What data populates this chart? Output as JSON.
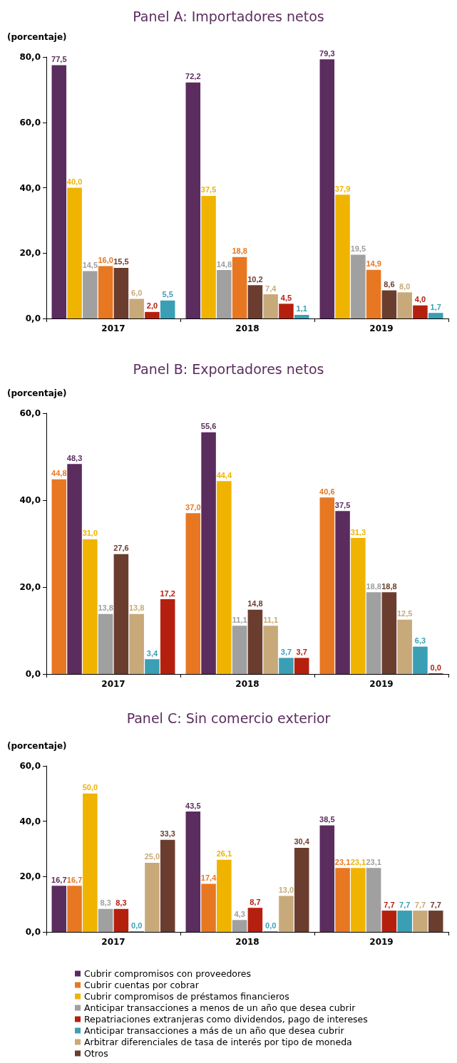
{
  "chart_data": [
    {
      "type": "bar",
      "title": "Panel A: Importadores netos",
      "ylabel": "(porcentaje)",
      "categories": [
        "2017",
        "2018",
        "2019"
      ],
      "ylim": [
        0,
        80
      ],
      "yticks": [
        {
          "value": 0,
          "label": "0,0"
        },
        {
          "value": 20,
          "label": "20,0"
        },
        {
          "value": 40,
          "label": "40,0"
        },
        {
          "value": 60,
          "label": "60,0"
        },
        {
          "value": 80,
          "label": "80,0"
        }
      ],
      "grid": false,
      "legend": false,
      "series": [
        {
          "color": "#5b2c5e",
          "values": [
            77.5,
            72.2,
            79.3
          ],
          "value_labels": [
            "77,5",
            "72,2",
            "79,3"
          ]
        },
        {
          "color": "#f0b400",
          "values": [
            40.0,
            37.5,
            37.9
          ],
          "value_labels": [
            "40,0",
            "37,5",
            "37,9"
          ]
        },
        {
          "color": "#a0a0a0",
          "values": [
            14.5,
            14.8,
            19.5
          ],
          "value_labels": [
            "14,5",
            "14,8",
            "19,5"
          ]
        },
        {
          "color": "#e87722",
          "values": [
            16.0,
            18.8,
            14.9
          ],
          "value_labels": [
            "16,0",
            "18,8",
            "14,9"
          ]
        },
        {
          "color": "#6b3d2e",
          "values": [
            15.5,
            10.2,
            8.6
          ],
          "value_labels": [
            "15,5",
            "10,2",
            "8,6"
          ]
        },
        {
          "color": "#c8a97a",
          "values": [
            6.0,
            7.4,
            8.0
          ],
          "value_labels": [
            "6,0",
            "7,4",
            "8,0"
          ]
        },
        {
          "color": "#b5200e",
          "values": [
            2.0,
            4.5,
            4.0
          ],
          "value_labels": [
            "2,0",
            "4,5",
            "4,0"
          ]
        },
        {
          "color": "#3a9fb5",
          "values": [
            5.5,
            1.1,
            1.7
          ],
          "value_labels": [
            "5,5",
            "1,1",
            "1,7"
          ]
        }
      ]
    },
    {
      "type": "bar",
      "title": "Panel B: Exportadores netos",
      "ylabel": "(porcentaje)",
      "categories": [
        "2017",
        "2018",
        "2019"
      ],
      "ylim": [
        0,
        60
      ],
      "yticks": [
        {
          "value": 0,
          "label": "0,0"
        },
        {
          "value": 20,
          "label": "20,0"
        },
        {
          "value": 40,
          "label": "40,0"
        },
        {
          "value": 60,
          "label": "60,0"
        }
      ],
      "grid": false,
      "legend": false,
      "series": [
        {
          "color": "#e87722",
          "values": [
            44.8,
            37.0,
            40.6
          ],
          "value_labels": [
            "44,8",
            "37,0",
            "40,6"
          ]
        },
        {
          "color": "#5b2c5e",
          "values": [
            48.3,
            55.6,
            37.5
          ],
          "value_labels": [
            "48,3",
            "55,6",
            "37,5"
          ]
        },
        {
          "color": "#f0b400",
          "values": [
            31.0,
            44.4,
            31.3
          ],
          "value_labels": [
            "31,0",
            "44,4",
            "31,3"
          ]
        },
        {
          "color": "#a0a0a0",
          "values": [
            13.8,
            11.1,
            18.8
          ],
          "value_labels": [
            "13,8",
            "11,1",
            "18,8"
          ]
        },
        {
          "color": "#6b3d2e",
          "values": [
            27.6,
            14.8,
            18.8
          ],
          "value_labels": [
            "27,6",
            "14,8",
            "18,8"
          ]
        },
        {
          "color": "#c8a97a",
          "values": [
            13.8,
            11.1,
            12.5
          ],
          "value_labels": [
            "13,8",
            "11,1",
            "12,5"
          ]
        },
        {
          "color": "#3a9fb5",
          "values": [
            3.4,
            3.7,
            6.3
          ],
          "value_labels": [
            "3,4",
            "3,7",
            "6,3"
          ]
        },
        {
          "color": "#b5200e",
          "values": [
            17.2,
            3.7,
            0.0
          ],
          "value_labels": [
            "17,2",
            "3,7",
            "0,0"
          ]
        }
      ]
    },
    {
      "type": "bar",
      "title": "Panel C: Sin comercio exterior",
      "ylabel": "(porcentaje)",
      "categories": [
        "2017",
        "2018",
        "2019"
      ],
      "ylim": [
        0,
        60
      ],
      "yticks": [
        {
          "value": 0,
          "label": "0,0"
        },
        {
          "value": 20,
          "label": "20,0"
        },
        {
          "value": 40,
          "label": "40,0"
        },
        {
          "value": 60,
          "label": "60,0"
        }
      ],
      "grid": false,
      "legend": "bottom",
      "series": [
        {
          "name": "Cubrir compromisos con proveedores",
          "color": "#5b2c5e",
          "values": [
            16.7,
            43.5,
            38.5
          ],
          "value_labels": [
            "16,7",
            "43,5",
            "38,5"
          ]
        },
        {
          "name": "Cubrir cuentas por cobrar",
          "color": "#e87722",
          "values": [
            16.7,
            17.4,
            23.1
          ],
          "value_labels": [
            "16,7",
            "17,4",
            "23,1"
          ]
        },
        {
          "name": "Cubrir compromisos de préstamos financieros",
          "color": "#f0b400",
          "values": [
            50.0,
            26.1,
            23.1
          ],
          "value_labels": [
            "50,0",
            "26,1",
            "23,1"
          ]
        },
        {
          "name": "Anticipar transacciones a menos de un año que desea cubrir",
          "color": "#a0a0a0",
          "values": [
            8.3,
            4.3,
            23.1
          ],
          "value_labels": [
            "8,3",
            "4,3",
            "23,1"
          ]
        },
        {
          "name": "Repatriaciones extranjeras como dividendos, pago de intereses",
          "color": "#b5200e",
          "values": [
            8.3,
            8.7,
            7.7
          ],
          "value_labels": [
            "8,3",
            "8,7",
            "7,7"
          ]
        },
        {
          "name": "Anticipar transacciones a más de un año que desea cubrir",
          "color": "#3a9fb5",
          "values": [
            0.0,
            0.0,
            7.7
          ],
          "value_labels": [
            "0,0",
            "0,0",
            "7,7"
          ]
        },
        {
          "name": "Arbitrar diferenciales de tasa de interés por tipo de moneda",
          "color": "#c8a97a",
          "values": [
            25.0,
            13.0,
            7.7
          ],
          "value_labels": [
            "25,0",
            "13,0",
            "7,7"
          ]
        },
        {
          "name": "Otros",
          "color": "#6b3d2e",
          "values": [
            33.3,
            30.4,
            7.7
          ],
          "value_labels": [
            "33,3",
            "30,4",
            "7,7"
          ]
        }
      ]
    }
  ]
}
